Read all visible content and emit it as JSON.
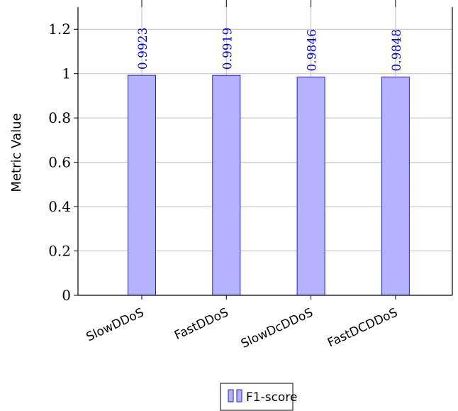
{
  "chart_data": {
    "type": "bar",
    "categories": [
      "SlowDDoS",
      "FastDDoS",
      "SlowDcDDoS",
      "FastDCDDoS"
    ],
    "series": [
      {
        "name": "F1-score",
        "values": [
          0.9923,
          0.9919,
          0.9846,
          0.9848
        ]
      }
    ],
    "value_labels": [
      "0.9923",
      "0.9919",
      "0.9846",
      "0.9848"
    ],
    "ylabel": "Metric Value",
    "xlabel": "",
    "ylim": [
      0,
      1.3
    ],
    "yticks": [
      0,
      0.2,
      0.4,
      0.6,
      0.8,
      1,
      1.2
    ],
    "ytick_labels": [
      "0",
      "0.2",
      "0.4",
      "0.6",
      "0.8",
      "1",
      "1.2"
    ],
    "grid": "horizontal",
    "legend_position": "bottom-center",
    "colors": {
      "bar_fill": "#b3b3ff",
      "bar_stroke": "#2222dd",
      "label": "#0000ff",
      "grid": "#bfbfbf"
    }
  }
}
